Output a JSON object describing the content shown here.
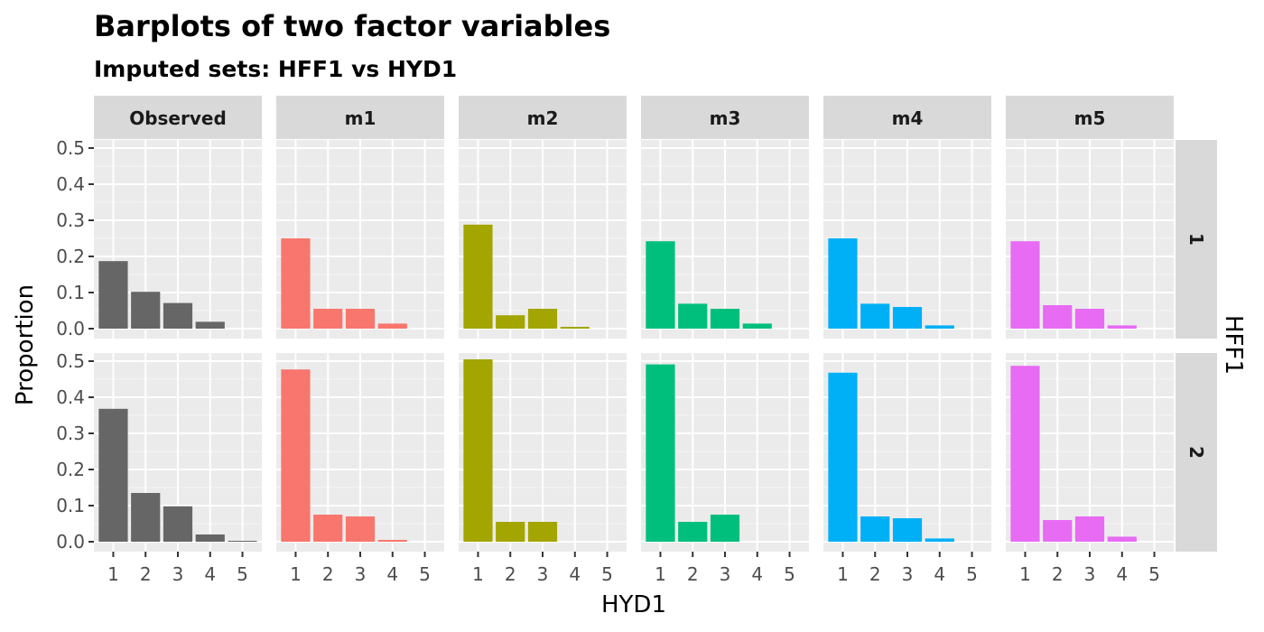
{
  "chart_data": {
    "type": "bar",
    "title": "Barplots of two factor variables",
    "subtitle": "Imputed sets:  HFF1 vs HYD1",
    "xlabel": "HYD1",
    "ylabel": "Proportion",
    "row_facet_label": "HFF1",
    "categories": [
      "1",
      "2",
      "3",
      "4",
      "5"
    ],
    "y_ticks": [
      "0.0",
      "0.1",
      "0.2",
      "0.3",
      "0.4",
      "0.5"
    ],
    "ylim": [
      0,
      0.52
    ],
    "grid": true,
    "rows": [
      "1",
      "2"
    ],
    "series": [
      {
        "name": "Observed",
        "color": "#666666",
        "values": [
          [
            0.187,
            0.102,
            0.071,
            0.019,
            0.0
          ],
          [
            0.368,
            0.135,
            0.098,
            0.02,
            0.002
          ]
        ]
      },
      {
        "name": "m1",
        "color": "#F8766D",
        "values": [
          [
            0.25,
            0.055,
            0.055,
            0.014,
            0.0
          ],
          [
            0.477,
            0.075,
            0.07,
            0.005,
            0.0
          ]
        ]
      },
      {
        "name": "m2",
        "color": "#A3A500",
        "values": [
          [
            0.288,
            0.037,
            0.055,
            0.005,
            0.0
          ],
          [
            0.505,
            0.055,
            0.055,
            0.0,
            0.0
          ]
        ]
      },
      {
        "name": "m3",
        "color": "#00BF7D",
        "values": [
          [
            0.242,
            0.069,
            0.055,
            0.014,
            0.0
          ],
          [
            0.491,
            0.055,
            0.075,
            0.0,
            0.0
          ]
        ]
      },
      {
        "name": "m4",
        "color": "#00B0F6",
        "values": [
          [
            0.25,
            0.069,
            0.06,
            0.009,
            0.0
          ],
          [
            0.468,
            0.07,
            0.065,
            0.009,
            0.0
          ]
        ]
      },
      {
        "name": "m5",
        "color": "#E76BF3",
        "values": [
          [
            0.242,
            0.065,
            0.055,
            0.009,
            0.0
          ],
          [
            0.487,
            0.06,
            0.07,
            0.014,
            0.0
          ]
        ]
      }
    ]
  }
}
